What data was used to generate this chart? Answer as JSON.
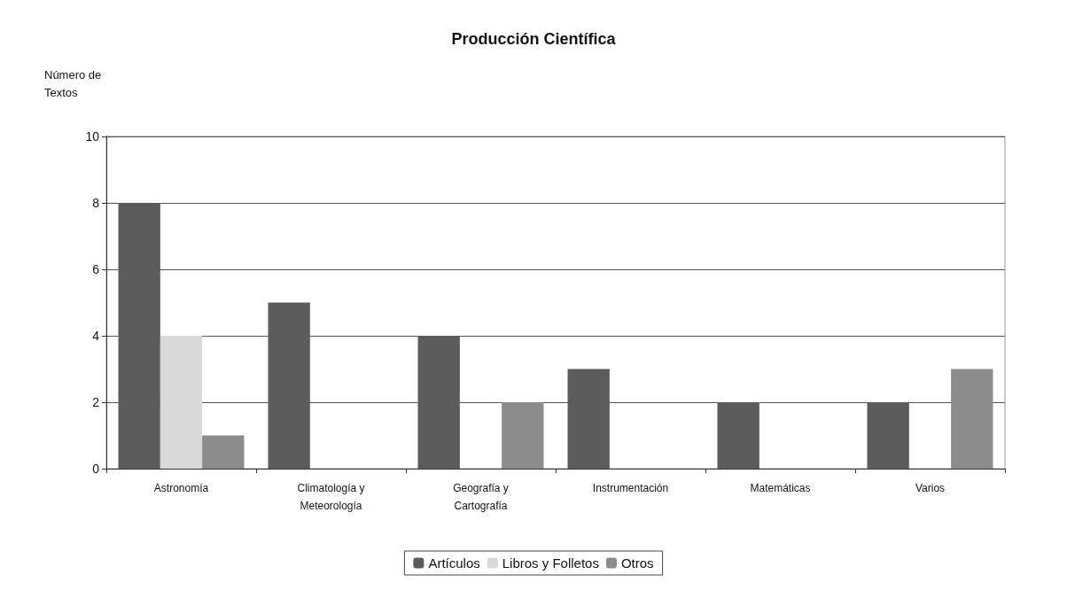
{
  "chart_data": {
    "type": "bar",
    "title": "Producción Científica",
    "ylabel": "Número de\nTextos",
    "categories": [
      "Astronomía",
      "Climatología y\nMeteorología",
      "Geografía y\nCartografía",
      "Instrumentación",
      "Matemáticas",
      "Varios"
    ],
    "series": [
      {
        "name": "Artículos",
        "color": "#5c5c5c",
        "values": [
          8,
          5,
          4,
          3,
          2,
          2
        ]
      },
      {
        "name": "Libros y Folletos",
        "color": "#d9d9d9",
        "values": [
          4,
          0,
          0,
          0,
          0,
          0
        ]
      },
      {
        "name": "Otros",
        "color": "#8c8c8c",
        "values": [
          1,
          0,
          2,
          0,
          0,
          3
        ]
      }
    ],
    "ylim": [
      0,
      10
    ],
    "yticks": [
      0,
      2,
      4,
      6,
      8,
      10
    ],
    "grid": "y",
    "legend": "bottom"
  }
}
